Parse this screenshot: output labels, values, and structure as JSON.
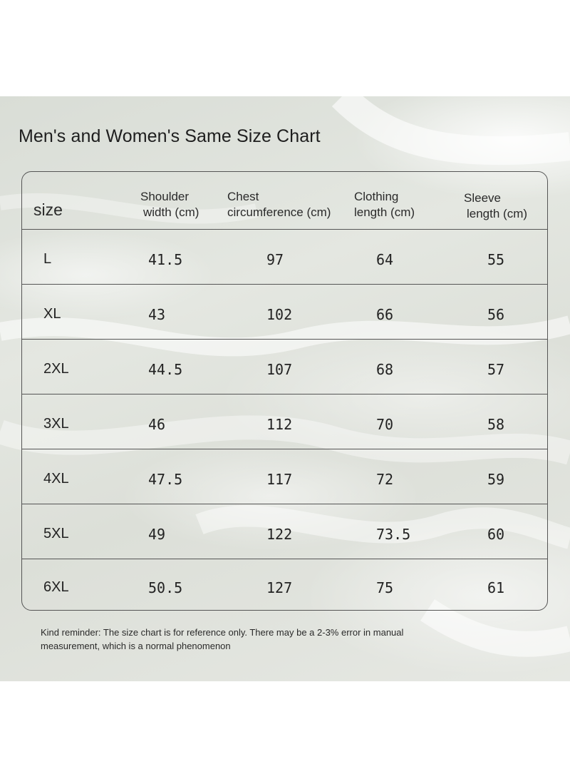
{
  "title": "Men's and Women's Same Size Chart",
  "headers": {
    "size": "size",
    "shoulder_line1": "Shoulder",
    "shoulder_line2": "width (cm)",
    "chest_line1": "Chest",
    "chest_line2": "circumference (cm)",
    "clothing_line1": "Clothing",
    "clothing_line2": "length (cm)",
    "sleeve_line1": "Sleeve",
    "sleeve_line2": "length (cm)"
  },
  "rows": [
    {
      "size": "L",
      "shoulder": "41.5",
      "chest": "97",
      "length": "64",
      "sleeve": "55"
    },
    {
      "size": "XL",
      "shoulder": "43",
      "chest": "102",
      "length": "66",
      "sleeve": "56"
    },
    {
      "size": "2XL",
      "shoulder": "44.5",
      "chest": "107",
      "length": "68",
      "sleeve": "57"
    },
    {
      "size": "3XL",
      "shoulder": "46",
      "chest": "112",
      "length": "70",
      "sleeve": "58"
    },
    {
      "size": "4XL",
      "shoulder": "47.5",
      "chest": "117",
      "length": "72",
      "sleeve": "59"
    },
    {
      "size": "5XL",
      "shoulder": "49",
      "chest": "122",
      "length": "73.5",
      "sleeve": "60"
    },
    {
      "size": "6XL",
      "shoulder": "50.5",
      "chest": "127",
      "length": "75",
      "sleeve": "61"
    }
  ],
  "note": {
    "line1": "Kind reminder: The size chart is for reference only. There may be a 2-3% error in manual",
    "line2": "measurement, which is a normal phenomenon"
  }
}
